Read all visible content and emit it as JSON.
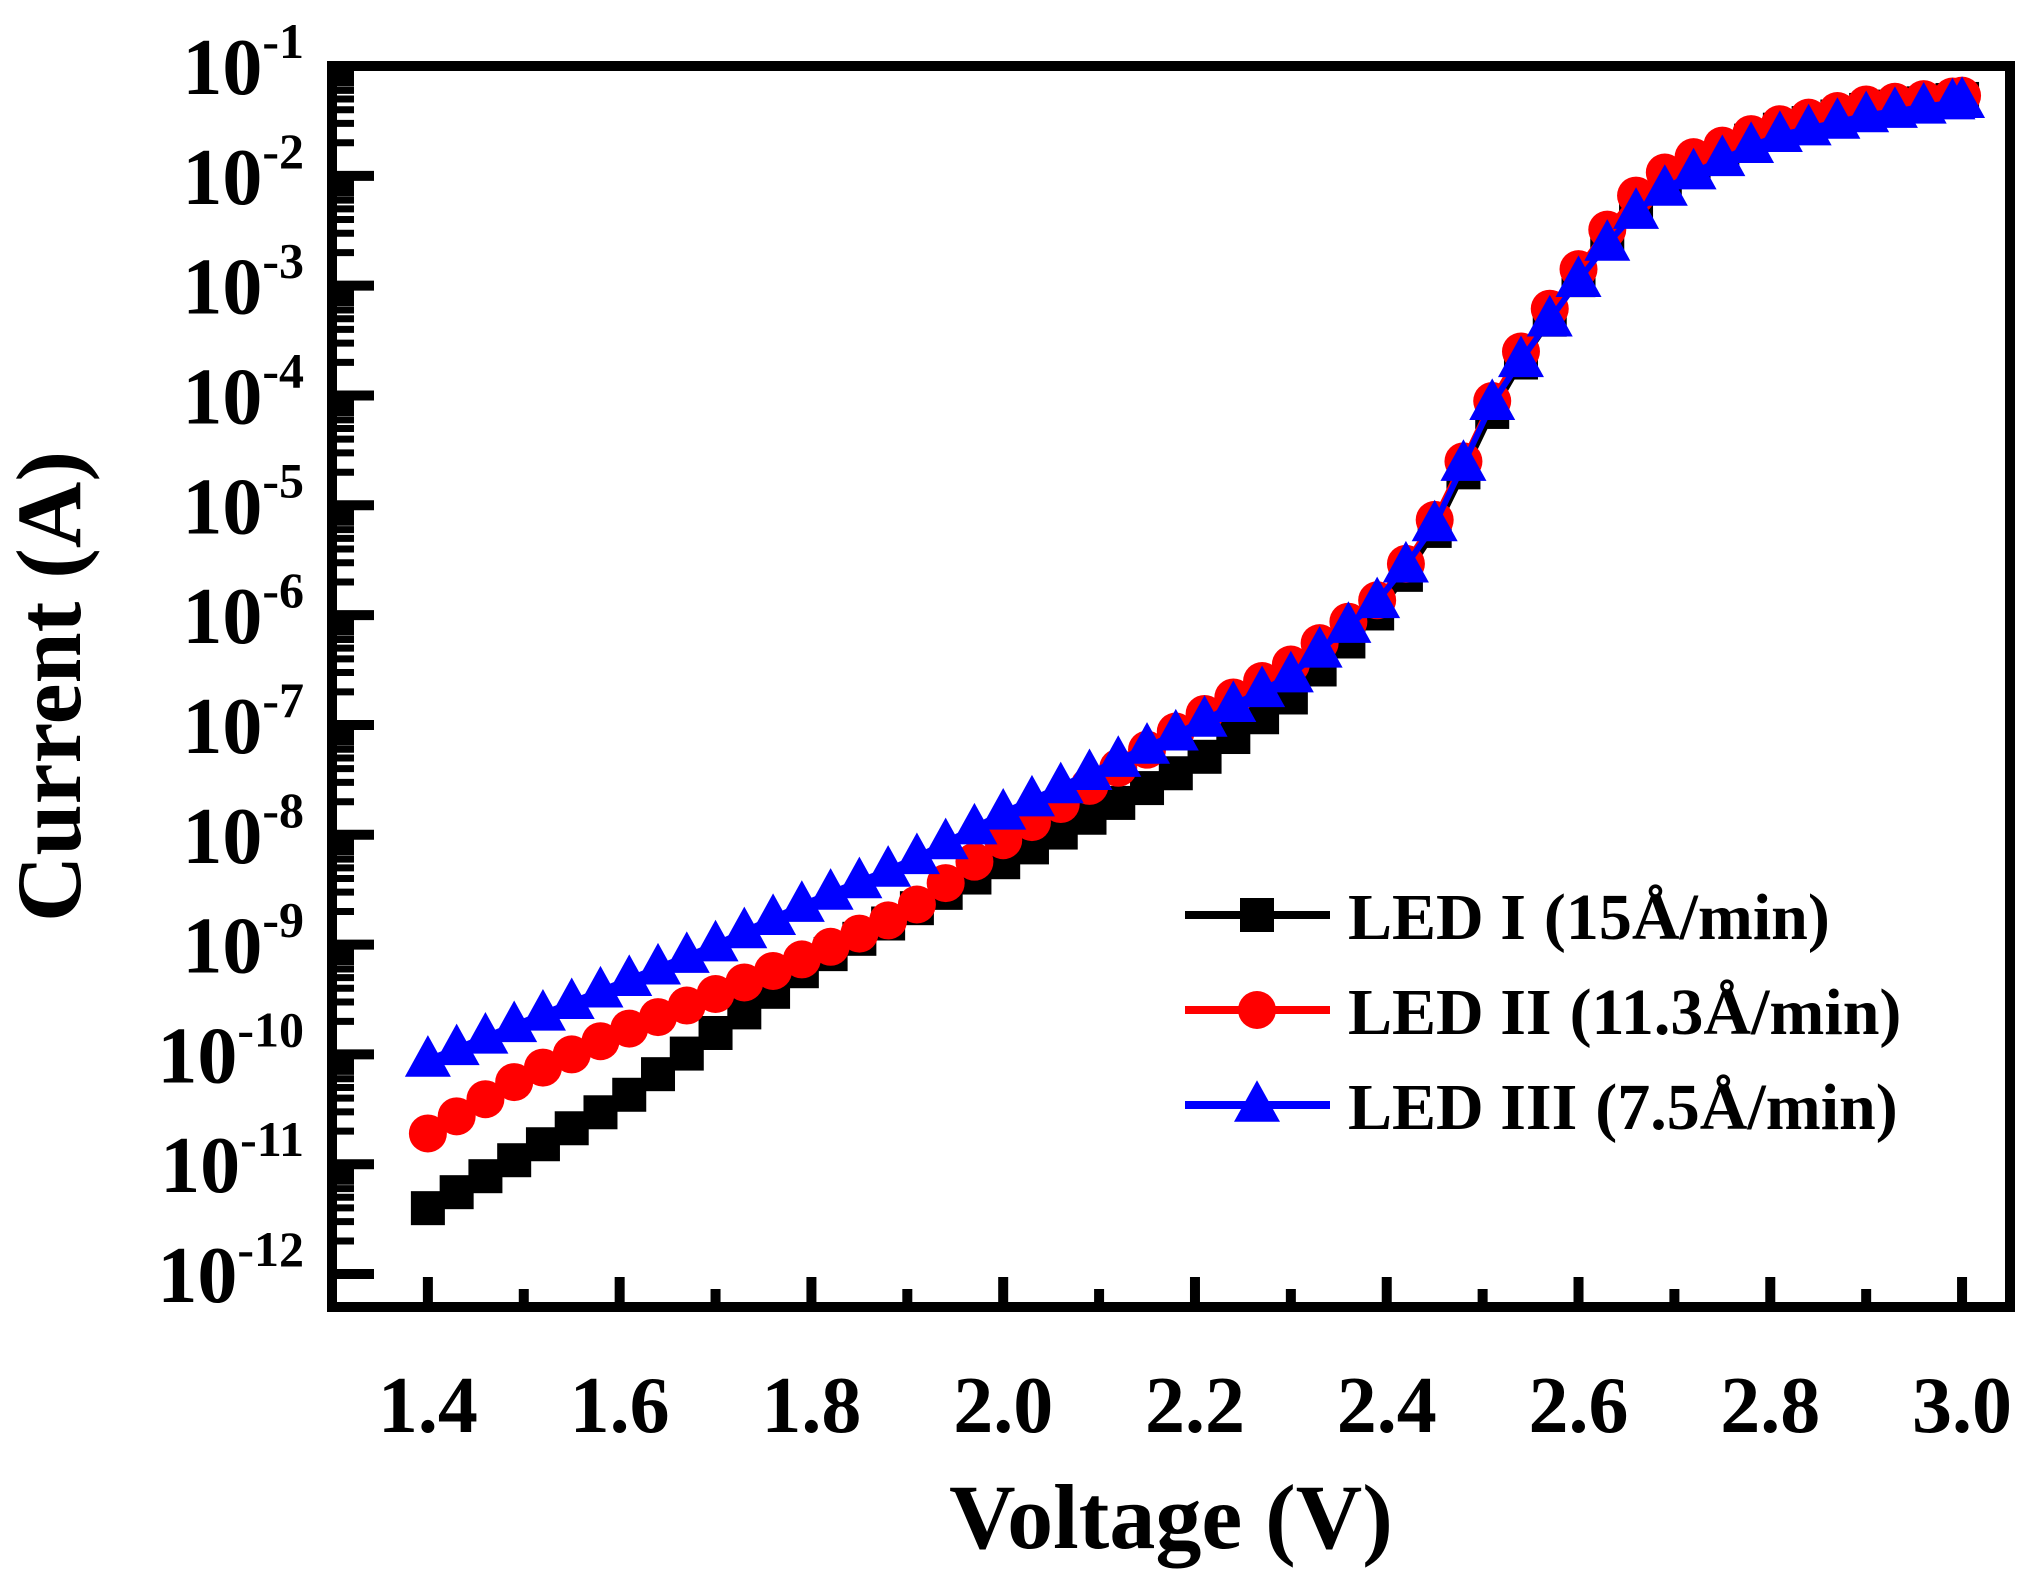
{
  "chart_data": {
    "type": "scatter",
    "title": "",
    "xlabel": "Voltage (V)",
    "ylabel": "Current (A)",
    "xlim": [
      1.3,
      3.05
    ],
    "ylim_log10": [
      -12.3,
      -1
    ],
    "x_ticks": [
      1.4,
      1.6,
      1.8,
      2.0,
      2.2,
      2.4,
      2.6,
      2.8,
      3.0
    ],
    "x_tick_labels": [
      "1.4",
      "1.6",
      "1.8",
      "2.0",
      "2.2",
      "2.4",
      "2.6",
      "2.8",
      "3.0"
    ],
    "y_tick_labels": [
      {
        "base": "10",
        "exp": "-1"
      },
      {
        "base": "10",
        "exp": "-2"
      },
      {
        "base": "10",
        "exp": "-3"
      },
      {
        "base": "10",
        "exp": "-4"
      },
      {
        "base": "10",
        "exp": "-5"
      },
      {
        "base": "10",
        "exp": "-6"
      },
      {
        "base": "10",
        "exp": "-7"
      },
      {
        "base": "10",
        "exp": "-8"
      },
      {
        "base": "10",
        "exp": "-9"
      },
      {
        "base": "10",
        "exp": "-10"
      },
      {
        "base": "10",
        "exp": "-11"
      },
      {
        "base": "10",
        "exp": "-12"
      }
    ],
    "x_step": 0.03,
    "x_start": 1.4,
    "x_end": 3.0,
    "legend_position": "lower-right",
    "series": [
      {
        "name": "LED I",
        "legend_main": "LED I",
        "legend_rate": "(15Å/min)",
        "color": "#000000",
        "marker": "square",
        "anchors": [
          [
            1.4,
            -11.4
          ],
          [
            1.6,
            -10.43
          ],
          [
            1.8,
            -9.18
          ],
          [
            2.0,
            -8.25
          ],
          [
            2.2,
            -7.35
          ],
          [
            2.3,
            -6.75
          ],
          [
            2.4,
            -5.9
          ],
          [
            2.46,
            -5.1
          ],
          [
            2.5,
            -4.3
          ],
          [
            2.55,
            -3.55
          ],
          [
            2.6,
            -2.95
          ],
          [
            2.65,
            -2.35
          ],
          [
            2.7,
            -2.0
          ],
          [
            2.8,
            -1.6
          ],
          [
            2.9,
            -1.4
          ],
          [
            3.0,
            -1.3
          ]
        ]
      },
      {
        "name": "LED II",
        "legend_main": "LED II",
        "legend_rate": "(11.3Å/min)",
        "color": "#ff0000",
        "marker": "circle",
        "anchors": [
          [
            1.4,
            -10.72
          ],
          [
            1.5,
            -10.2
          ],
          [
            1.6,
            -9.8
          ],
          [
            1.7,
            -9.45
          ],
          [
            1.8,
            -9.1
          ],
          [
            1.9,
            -8.7
          ],
          [
            2.0,
            -8.05
          ],
          [
            2.1,
            -7.5
          ],
          [
            2.2,
            -6.95
          ],
          [
            2.3,
            -6.45
          ],
          [
            2.4,
            -5.8
          ],
          [
            2.46,
            -5.0
          ],
          [
            2.5,
            -4.2
          ],
          [
            2.55,
            -3.45
          ],
          [
            2.6,
            -2.85
          ],
          [
            2.65,
            -2.25
          ],
          [
            2.7,
            -1.9
          ],
          [
            2.8,
            -1.55
          ],
          [
            2.9,
            -1.35
          ],
          [
            3.0,
            -1.27
          ]
        ]
      },
      {
        "name": "LED III",
        "legend_main": "LED III",
        "legend_rate": "(7.5Å/min)",
        "color": "#0000ff",
        "marker": "triangle",
        "anchors": [
          [
            1.4,
            -10.05
          ],
          [
            1.5,
            -9.7
          ],
          [
            1.6,
            -9.35
          ],
          [
            1.7,
            -9.0
          ],
          [
            1.8,
            -8.6
          ],
          [
            1.9,
            -8.25
          ],
          [
            2.0,
            -7.8
          ],
          [
            2.1,
            -7.4
          ],
          [
            2.2,
            -7.0
          ],
          [
            2.3,
            -6.55
          ],
          [
            2.4,
            -5.8
          ],
          [
            2.46,
            -5.05
          ],
          [
            2.5,
            -4.2
          ],
          [
            2.55,
            -3.55
          ],
          [
            2.6,
            -2.95
          ],
          [
            2.65,
            -2.4
          ],
          [
            2.7,
            -2.05
          ],
          [
            2.8,
            -1.65
          ],
          [
            2.9,
            -1.45
          ],
          [
            3.0,
            -1.32
          ]
        ]
      }
    ]
  }
}
